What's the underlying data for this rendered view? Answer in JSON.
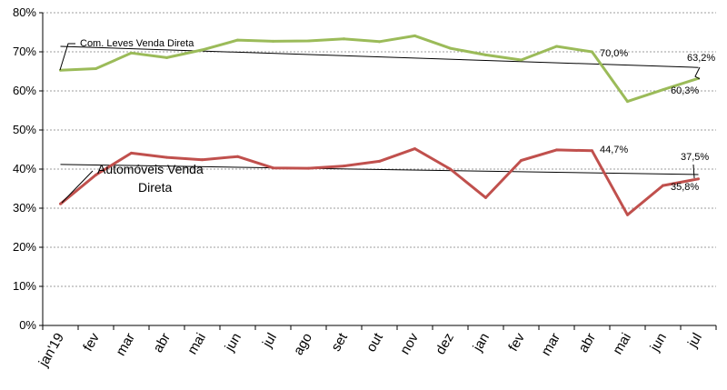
{
  "chart_data": {
    "type": "line",
    "categories": [
      "jan'19",
      "fev",
      "mar",
      "abr",
      "mai",
      "jun",
      "jul",
      "ago",
      "set",
      "out",
      "nov",
      "dez",
      "jan",
      "fev",
      "mar",
      "abr",
      "mai",
      "jun",
      "jul"
    ],
    "ylim": [
      0,
      80
    ],
    "yticks": [
      "0%",
      "10%",
      "20%",
      "30%",
      "40%",
      "50%",
      "60%",
      "70%",
      "80%"
    ],
    "grid": true,
    "series": [
      {
        "name": "Com. Leves Venda Direta",
        "color": "#9bbb59",
        "values": [
          65.3,
          65.7,
          69.7,
          68.5,
          70.5,
          73.0,
          72.7,
          72.8,
          73.3,
          72.6,
          74.1,
          70.9,
          69.2,
          67.9,
          71.4,
          70.0,
          57.3,
          60.3,
          63.2
        ],
        "trend": [
          71.4,
          66.0
        ]
      },
      {
        "name": "Automóveis Venda Direta",
        "color": "#c0504d",
        "values": [
          31.1,
          38.5,
          44.1,
          43.0,
          42.4,
          43.2,
          40.3,
          40.2,
          40.8,
          42.0,
          45.2,
          40.0,
          32.7,
          42.2,
          44.9,
          44.7,
          28.3,
          35.8,
          37.5
        ],
        "trend": [
          41.2,
          38.6
        ]
      }
    ],
    "annotations": [
      {
        "text": "70,0%"
      },
      {
        "text": "63,2%"
      },
      {
        "text": "60,3%"
      },
      {
        "text": "44,7%"
      },
      {
        "text": "37,5%"
      },
      {
        "text": "35,8%"
      }
    ],
    "series_labels": {
      "green": "Com. Leves Venda Direta",
      "red_line1": "Automóveis Venda",
      "red_line2": "Direta"
    }
  }
}
